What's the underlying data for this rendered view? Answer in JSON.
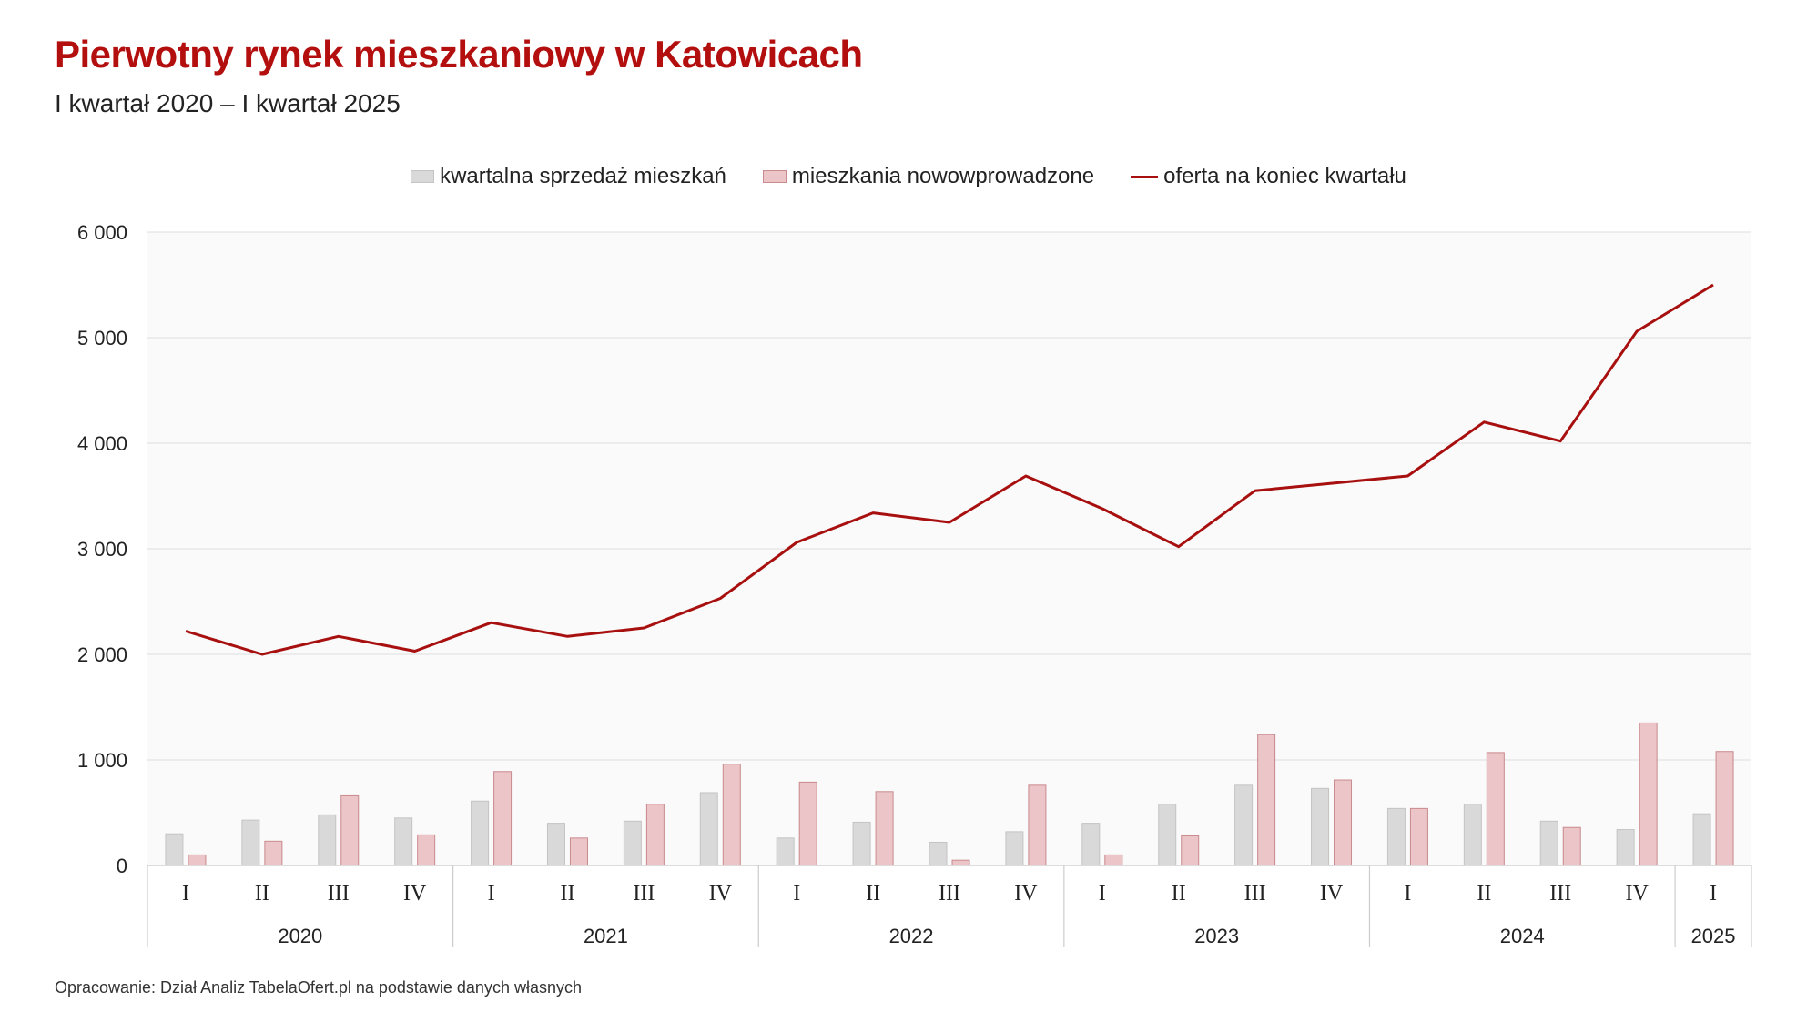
{
  "title": "Pierwotny rynek mieszkaniowy w Katowicach",
  "subtitle": "I kwartał 2020 – I kwartał 2025",
  "footer": "Opracowanie: Dział Analiz TabelaOfert.pl na podstawie danych własnych",
  "colors": {
    "title": "#b40f0f",
    "sales_fill": "#d9d9d9",
    "sales_stroke": "#c4c4c4",
    "new_fill": "#ebc5c7",
    "new_stroke": "#c98a8e",
    "offer_line": "#a81010",
    "plot_bg": "#fafafa",
    "grid": "#e3e3e3"
  },
  "chart_data": {
    "type": "bar",
    "title": "Pierwotny rynek mieszkaniowy w Katowicach",
    "xlabel": "",
    "ylabel": "",
    "ylim": [
      0,
      6000
    ],
    "yticks": [
      0,
      1000,
      2000,
      3000,
      4000,
      5000,
      6000
    ],
    "ytick_labels": [
      "0",
      "1 000",
      "2 000",
      "3 000",
      "4 000",
      "5 000",
      "6 000"
    ],
    "legend_position": "top-center",
    "categories": [
      "I",
      "II",
      "III",
      "IV",
      "I",
      "II",
      "III",
      "IV",
      "I",
      "II",
      "III",
      "IV",
      "I",
      "II",
      "III",
      "IV",
      "I",
      "II",
      "III",
      "IV",
      "I"
    ],
    "years": [
      {
        "label": "2020",
        "count": 4
      },
      {
        "label": "2021",
        "count": 4
      },
      {
        "label": "2022",
        "count": 4
      },
      {
        "label": "2023",
        "count": 4
      },
      {
        "label": "2024",
        "count": 4
      },
      {
        "label": "2025",
        "count": 1
      }
    ],
    "series": [
      {
        "name": "kwartalna sprzedaż mieszkań",
        "type": "bar",
        "values": [
          300,
          430,
          480,
          450,
          610,
          400,
          420,
          690,
          260,
          410,
          220,
          320,
          400,
          580,
          760,
          730,
          540,
          580,
          420,
          340,
          490
        ]
      },
      {
        "name": "mieszkania nowowprowadzone",
        "type": "bar",
        "values": [
          100,
          230,
          660,
          290,
          890,
          260,
          580,
          960,
          790,
          700,
          50,
          760,
          100,
          280,
          1240,
          810,
          540,
          1070,
          360,
          1350,
          1080
        ]
      },
      {
        "name": "oferta na koniec kwartału",
        "type": "line",
        "values": [
          2220,
          2000,
          2170,
          2030,
          2300,
          2170,
          2250,
          2530,
          3060,
          3340,
          3250,
          3690,
          3380,
          3020,
          3550,
          3620,
          3690,
          4200,
          4020,
          5060,
          5500
        ]
      }
    ]
  }
}
